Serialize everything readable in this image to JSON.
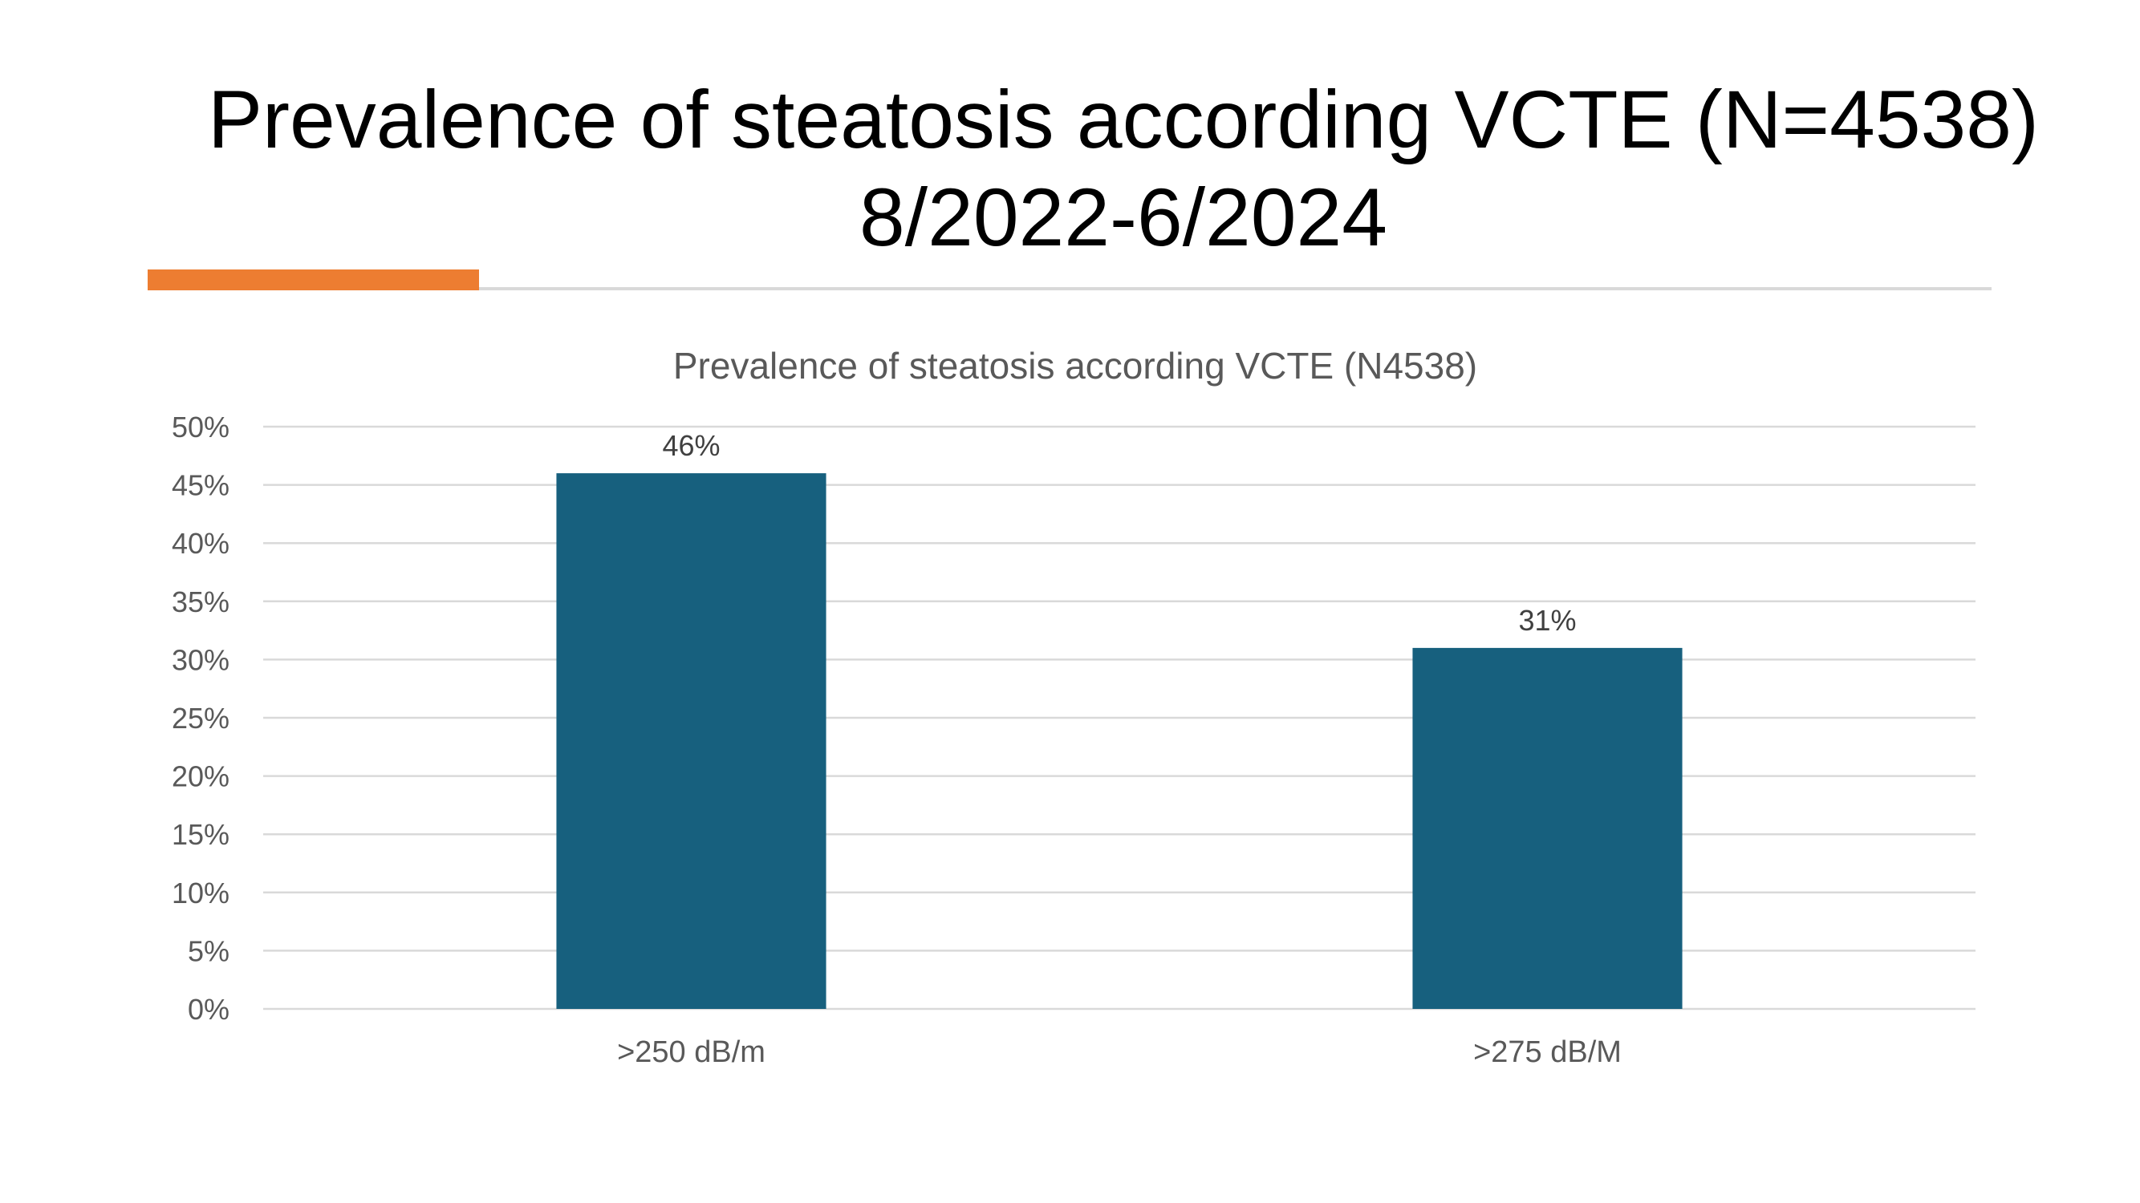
{
  "slide": {
    "title_line1": "Prevalence of steatosis according VCTE (N=4538)",
    "title_line2": "8/2022-6/2024",
    "accent_color": "#ED7D31",
    "divider_color": "#D9D9D9"
  },
  "chart_data": {
    "type": "bar",
    "title": "Prevalence of steatosis according VCTE (N4538)",
    "categories": [
      ">250 dB/m",
      ">275 dB/M"
    ],
    "values": [
      46,
      31
    ],
    "data_labels": [
      "46%",
      "31%"
    ],
    "y_ticks": [
      "0%",
      "5%",
      "10%",
      "15%",
      "20%",
      "25%",
      "30%",
      "35%",
      "40%",
      "45%",
      "50%"
    ],
    "ylim": [
      0,
      50
    ],
    "y_step": 5,
    "grid": true,
    "legend": "none",
    "bar_color": "#17607E",
    "gridline_color": "#D9D9D9"
  }
}
